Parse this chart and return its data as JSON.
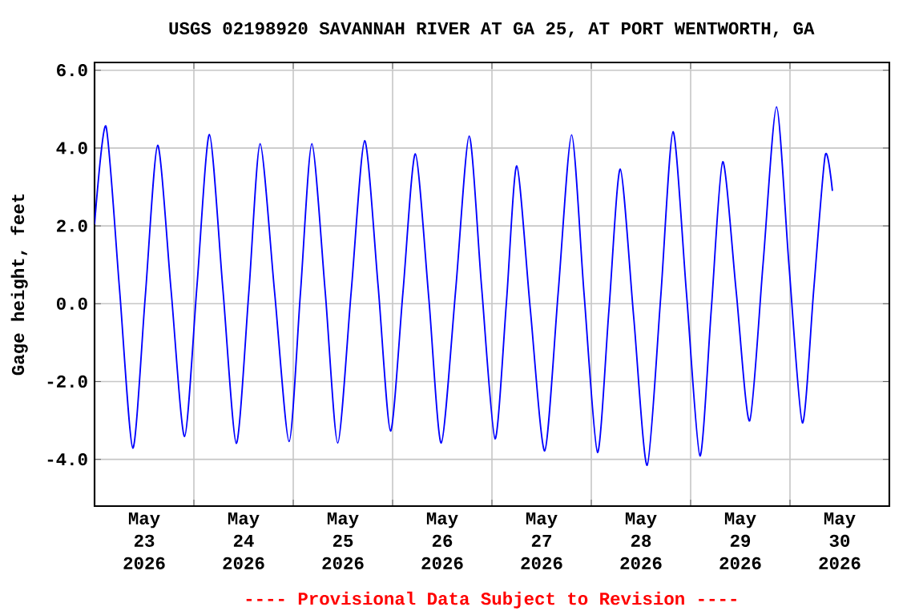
{
  "chart_data": {
    "type": "line",
    "title": "USGS 02198920 SAVANNAH RIVER AT GA 25, AT PORT WENTWORTH, GA",
    "ylabel": "Gage height, feet",
    "annotations": [
      "---- Provisional Data Subject to Revision ----"
    ],
    "x": [
      "2026-05-23T00:00",
      "2026-05-23T02:45",
      "2026-05-23T06:00",
      "2026-05-23T09:15",
      "2026-05-23T12:15",
      "2026-05-23T15:15",
      "2026-05-23T18:30",
      "2026-05-23T21:45",
      "2026-05-24T00:45",
      "2026-05-24T03:45",
      "2026-05-24T07:00",
      "2026-05-24T10:15",
      "2026-05-24T13:15",
      "2026-05-24T16:00",
      "2026-05-24T19:30",
      "2026-05-24T23:00",
      "2026-05-25T01:45",
      "2026-05-25T04:30",
      "2026-05-25T07:45",
      "2026-05-25T10:45",
      "2026-05-25T14:00",
      "2026-05-25T17:15",
      "2026-05-25T20:30",
      "2026-05-25T23:30",
      "2026-05-26T02:30",
      "2026-05-26T05:30",
      "2026-05-26T08:45",
      "2026-05-26T11:45",
      "2026-05-26T15:15",
      "2026-05-26T18:30",
      "2026-05-26T21:30",
      "2026-05-27T00:45",
      "2026-05-27T03:30",
      "2026-05-27T06:00",
      "2026-05-27T09:15",
      "2026-05-27T12:45",
      "2026-05-27T16:00",
      "2026-05-27T19:15",
      "2026-05-27T22:15",
      "2026-05-28T01:30",
      "2026-05-28T04:15",
      "2026-05-28T07:00",
      "2026-05-28T10:15",
      "2026-05-28T13:30",
      "2026-05-28T16:45",
      "2026-05-28T19:45",
      "2026-05-28T23:00",
      "2026-05-29T02:15",
      "2026-05-29T05:00",
      "2026-05-29T07:45",
      "2026-05-29T11:00",
      "2026-05-29T14:15",
      "2026-05-29T17:30",
      "2026-05-29T20:45",
      "2026-05-29T23:45",
      "2026-05-30T03:00",
      "2026-05-30T05:45",
      "2026-05-30T08:30",
      "2026-05-30T10:15"
    ],
    "series": [
      {
        "color": "#0000ff",
        "values": [
          2.04,
          4.56,
          0.42,
          -3.71,
          0.18,
          4.07,
          0.33,
          -3.41,
          0.47,
          4.35,
          0.38,
          -3.59,
          0.26,
          4.11,
          0.29,
          -3.54,
          0.29,
          4.11,
          0.27,
          -3.58,
          0.31,
          4.19,
          0.46,
          -3.27,
          0.29,
          3.85,
          0.14,
          -3.58,
          0.37,
          4.31,
          0.43,
          -3.47,
          0.04,
          3.54,
          -0.12,
          -3.78,
          0.28,
          4.34,
          0.26,
          -3.82,
          -0.18,
          3.46,
          -0.35,
          -4.15,
          0.14,
          4.42,
          0.26,
          -3.91,
          -0.13,
          3.65,
          0.32,
          -3.01,
          1.03,
          5.06,
          1.0,
          -3.06,
          0.38,
          3.81,
          2.9
        ]
      }
    ],
    "xlim": [
      "2026-05-23T00:00",
      "2026-05-31T00:00"
    ],
    "xticks": [
      {
        "value": "2026-05-23T12:00",
        "label": "May 23 2026"
      },
      {
        "value": "2026-05-24T00:00",
        "label": null
      },
      {
        "value": "2026-05-24T12:00",
        "label": "May 24 2026"
      },
      {
        "value": "2026-05-25T00:00",
        "label": null
      },
      {
        "value": "2026-05-25T12:00",
        "label": "May 25 2026"
      },
      {
        "value": "2026-05-26T00:00",
        "label": null
      },
      {
        "value": "2026-05-26T12:00",
        "label": "May 26 2026"
      },
      {
        "value": "2026-05-27T00:00",
        "label": null
      },
      {
        "value": "2026-05-27T12:00",
        "label": "May 27 2026"
      },
      {
        "value": "2026-05-28T00:00",
        "label": null
      },
      {
        "value": "2026-05-28T12:00",
        "label": "May 28 2026"
      },
      {
        "value": "2026-05-29T00:00",
        "label": null
      },
      {
        "value": "2026-05-29T12:00",
        "label": "May 29 2026"
      },
      {
        "value": "2026-05-30T00:00",
        "label": null
      },
      {
        "value": "2026-05-30T12:00",
        "label": "May 30 2026"
      }
    ],
    "ylim": [
      -5.2,
      6.2
    ],
    "yticks": [
      {
        "value": -4,
        "label": "-4.0"
      },
      {
        "value": -2,
        "label": "-2.0"
      },
      {
        "value": 0,
        "label": "0.0"
      },
      {
        "value": 2,
        "label": "2.0"
      },
      {
        "value": 4,
        "label": "4.0"
      },
      {
        "value": 6,
        "label": "6.0"
      }
    ],
    "grid": true
  }
}
